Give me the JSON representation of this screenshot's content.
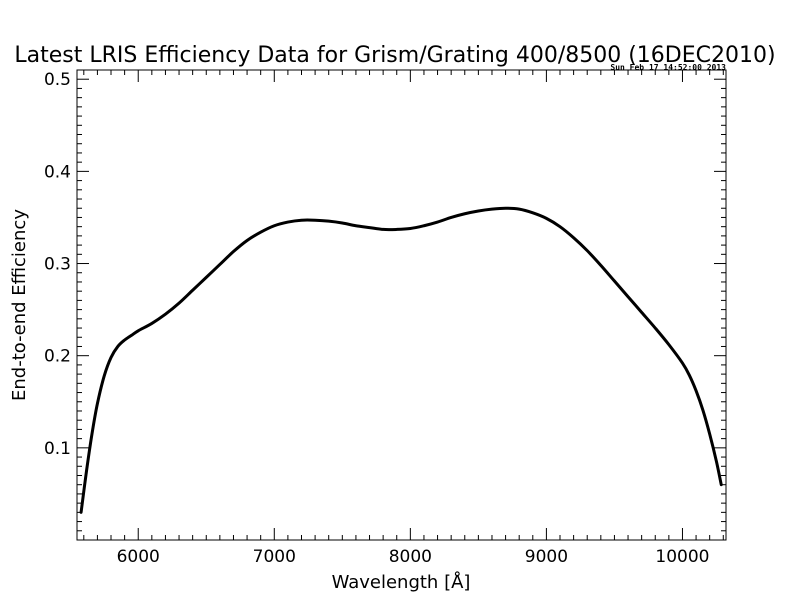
{
  "chart_data": {
    "type": "line",
    "title": "Latest LRIS Efficiency Data for Grism/Grating 400/8500 (16DEC2010)",
    "timestamp": "Sun Feb 17 14:52:00 2013",
    "xlabel": "Wavelength [Å]",
    "ylabel": "End-to-end Efficiency",
    "xlim": [
      5550,
      10320
    ],
    "ylim": [
      0.0,
      0.51
    ],
    "x_ticks": [
      6000,
      7000,
      8000,
      9000,
      10000
    ],
    "y_ticks": [
      0.1,
      0.2,
      0.3,
      0.4,
      0.5
    ],
    "y_tick_labels": [
      "0.1",
      "0.2",
      "0.3",
      "0.4",
      "0.5"
    ],
    "grid": false,
    "legend": "none",
    "line_color": "#000000",
    "series": [
      {
        "x": [
          5580,
          5620,
          5660,
          5700,
          5750,
          5800,
          5850,
          5900,
          5950,
          6000,
          6100,
          6200,
          6300,
          6400,
          6500,
          6600,
          6700,
          6800,
          6900,
          7000,
          7100,
          7200,
          7300,
          7400,
          7500,
          7600,
          7700,
          7800,
          7900,
          8000,
          8100,
          8200,
          8300,
          8400,
          8500,
          8600,
          8700,
          8800,
          8900,
          9000,
          9100,
          9200,
          9300,
          9400,
          9500,
          9600,
          9700,
          9800,
          9900,
          10000,
          10050,
          10100,
          10150,
          10200,
          10250,
          10285
        ],
        "values": [
          0.03,
          0.075,
          0.115,
          0.148,
          0.178,
          0.198,
          0.21,
          0.217,
          0.222,
          0.227,
          0.235,
          0.245,
          0.257,
          0.271,
          0.285,
          0.299,
          0.313,
          0.325,
          0.334,
          0.341,
          0.345,
          0.347,
          0.347,
          0.346,
          0.344,
          0.341,
          0.339,
          0.337,
          0.337,
          0.338,
          0.341,
          0.345,
          0.35,
          0.354,
          0.357,
          0.359,
          0.36,
          0.359,
          0.355,
          0.349,
          0.34,
          0.328,
          0.314,
          0.298,
          0.281,
          0.264,
          0.247,
          0.23,
          0.212,
          0.192,
          0.179,
          0.162,
          0.141,
          0.115,
          0.085,
          0.06
        ]
      }
    ]
  }
}
